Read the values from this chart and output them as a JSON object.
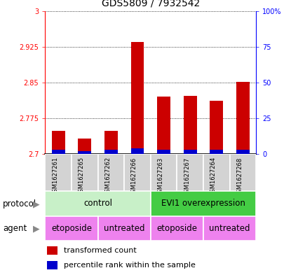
{
  "title": "GDS5809 / 7932542",
  "samples": [
    "GSM1627261",
    "GSM1627265",
    "GSM1627262",
    "GSM1627266",
    "GSM1627263",
    "GSM1627267",
    "GSM1627264",
    "GSM1627268"
  ],
  "transformed_counts": [
    2.748,
    2.732,
    2.748,
    2.935,
    2.82,
    2.822,
    2.812,
    2.852
  ],
  "percentile_ranks": [
    3,
    2,
    3,
    4,
    3,
    3,
    3,
    3
  ],
  "ylim_left": [
    2.7,
    3.0
  ],
  "ylim_right": [
    0,
    100
  ],
  "yticks_left": [
    2.7,
    2.775,
    2.85,
    2.925,
    3.0
  ],
  "yticks_right": [
    0,
    25,
    50,
    75,
    100
  ],
  "ytick_labels_left": [
    "2.7",
    "2.775",
    "2.85",
    "2.925",
    "3"
  ],
  "ytick_labels_right": [
    "0",
    "25",
    "50",
    "75",
    "100%"
  ],
  "bar_color_red": "#CC0000",
  "bar_color_blue": "#0000CC",
  "bar_width": 0.5,
  "background_color": "#ffffff",
  "sample_bg_color": "#d3d3d3",
  "protocol_control_color": "#c8f0c8",
  "protocol_evi1_color": "#44cc44",
  "agent_color": "#ee82ee",
  "n_samples": 8
}
